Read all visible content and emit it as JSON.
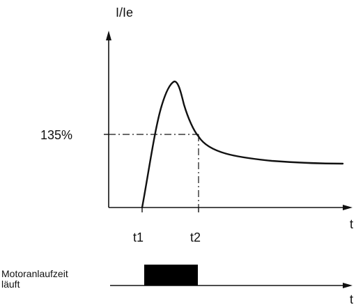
{
  "diagram": {
    "y_axis_label": "I/Ie",
    "x_axis_label": "t",
    "threshold_label": "135%",
    "t1_label": "t1",
    "t2_label": "t2",
    "timing_axis_label": "t",
    "signal_label_line1": "Motoranlaufzeit",
    "signal_label_line2": "läuft"
  },
  "colors": {
    "ink": "#111111",
    "background": "#ffffff",
    "signal_fill": "#000000"
  }
}
